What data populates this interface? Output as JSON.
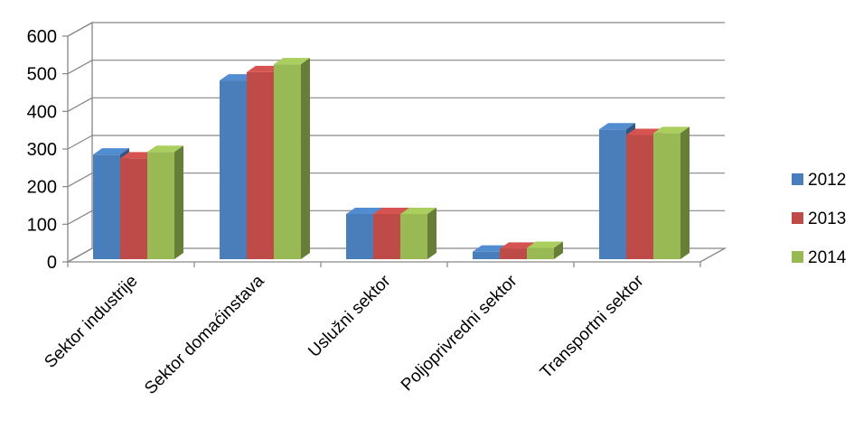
{
  "chart_data": {
    "type": "bar",
    "categories": [
      "Sektor industrije",
      "Sektor domaćinstava",
      "Uslužni sektor",
      "Poljoprivredni sektor",
      "Transportni sektor"
    ],
    "series": [
      {
        "name": "2012",
        "values": [
          278,
          475,
          120,
          20,
          345
        ],
        "color": "#4A7EBB"
      },
      {
        "name": "2013",
        "values": [
          268,
          497,
          120,
          28,
          330
        ],
        "color": "#BE4B48"
      },
      {
        "name": "2014",
        "values": [
          285,
          518,
          120,
          30,
          335
        ],
        "color": "#98B954"
      }
    ],
    "yticks": [
      "0",
      "100",
      "200",
      "300",
      "400",
      "500",
      "600"
    ],
    "ylim": [
      0,
      600
    ],
    "title": "",
    "xlabel": "",
    "ylabel": "",
    "grid": true,
    "legend_position": "right",
    "style": "3d-clustered"
  }
}
